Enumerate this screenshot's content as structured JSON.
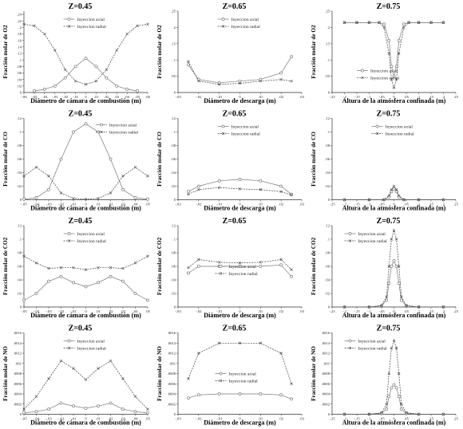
{
  "chart_data": [
    {
      "type": "line",
      "title": "Z=0.45",
      "xlabel": "Diámetro de cámara de combustión (m)",
      "ylabel": "Fracción molar de O2",
      "xlim": [
        -0.06,
        0.06
      ],
      "ylim": [
        0,
        0.25
      ],
      "xticks": [
        -0.06,
        -0.05,
        -0.04,
        -0.03,
        -0.02,
        -0.01,
        0,
        0.01,
        0.02,
        0.03,
        0.04,
        0.05,
        0.06
      ],
      "yticks": [
        0,
        0.02,
        0.04,
        0.06,
        0.08,
        0.1,
        0.12,
        0.14,
        0.16,
        0.18,
        0.2,
        0.22,
        0.24
      ],
      "legend": "top-center",
      "series": [
        {
          "name": "Inyeccion axial",
          "style": "circle",
          "x": [
            -0.05,
            -0.04,
            -0.03,
            -0.02,
            -0.01,
            0,
            0.01,
            0.02,
            0.03,
            0.04,
            0.05
          ],
          "y": [
            0.005,
            0.01,
            0.02,
            0.045,
            0.08,
            0.105,
            0.08,
            0.045,
            0.02,
            0.01,
            0.005
          ]
        },
        {
          "name": "Inyeccion radial",
          "style": "cross",
          "x": [
            -0.06,
            -0.05,
            -0.04,
            -0.03,
            -0.02,
            -0.01,
            0,
            0.01,
            0.02,
            0.03,
            0.04,
            0.05,
            0.06
          ],
          "y": [
            0.21,
            0.205,
            0.18,
            0.13,
            0.07,
            0.035,
            0.025,
            0.035,
            0.07,
            0.13,
            0.18,
            0.205,
            0.21
          ]
        }
      ]
    },
    {
      "type": "line",
      "title": "Z=0.65",
      "xlabel": "Diámetro de descarga (m)",
      "ylabel": "Fracción molar de O2",
      "xlim": [
        -0.03,
        0.03
      ],
      "ylim": [
        0,
        0.25
      ],
      "xticks": [
        -0.03,
        -0.02,
        -0.01,
        0,
        0.01,
        0.02,
        0.03
      ],
      "yticks": [
        0,
        0.05,
        0.1,
        0.15,
        0.2,
        0.25
      ],
      "legend": "top-center",
      "series": [
        {
          "name": "Inyeccion axial",
          "style": "circle",
          "x": [
            -0.025,
            -0.02,
            -0.01,
            0,
            0.01,
            0.02,
            0.025
          ],
          "y": [
            0.085,
            0.04,
            0.03,
            0.035,
            0.04,
            0.06,
            0.11
          ]
        },
        {
          "name": "Inyeccion radial",
          "style": "cross",
          "x": [
            -0.025,
            -0.02,
            -0.01,
            0,
            0.01,
            0.02,
            0.025
          ],
          "y": [
            0.095,
            0.035,
            0.025,
            0.028,
            0.035,
            0.04,
            0.035
          ]
        }
      ]
    },
    {
      "type": "line",
      "title": "Z=0.75",
      "xlabel": "Altura de la atmósfera confinada (m)",
      "ylabel": "Fracción molar de O2",
      "xlim": [
        -0.25,
        0.25
      ],
      "ylim": [
        0,
        0.25
      ],
      "xticks": [
        -0.25,
        -0.2,
        -0.15,
        -0.1,
        -0.05,
        0,
        0.05,
        0.1,
        0.15,
        0.2,
        0.25
      ],
      "yticks": [
        0,
        0.05,
        0.1,
        0.15,
        0.2,
        0.25
      ],
      "legend": "bottom-center",
      "series": [
        {
          "name": "Inyeccion axial",
          "style": "circle",
          "x": [
            -0.2,
            -0.15,
            -0.1,
            -0.06,
            -0.04,
            -0.02,
            -0.01,
            0,
            0.01,
            0.02,
            0.04,
            0.06,
            0.1,
            0.15,
            0.2
          ],
          "y": [
            0.215,
            0.215,
            0.215,
            0.215,
            0.21,
            0.16,
            0.08,
            0.05,
            0.08,
            0.16,
            0.21,
            0.215,
            0.215,
            0.215,
            0.215
          ]
        },
        {
          "name": "Inyeccion radial",
          "style": "cross",
          "x": [
            -0.2,
            -0.15,
            -0.1,
            -0.06,
            -0.04,
            -0.02,
            -0.01,
            0,
            0.01,
            0.02,
            0.04,
            0.06,
            0.1,
            0.15,
            0.2
          ],
          "y": [
            0.215,
            0.215,
            0.215,
            0.215,
            0.2,
            0.12,
            0.04,
            0.015,
            0.04,
            0.12,
            0.2,
            0.215,
            0.215,
            0.215,
            0.215
          ]
        }
      ]
    },
    {
      "type": "line",
      "title": "Z=0.45",
      "xlabel": "Diámetro de cámara de combustión (m)",
      "ylabel": "Fracción molar de CO",
      "xlim": [
        -0.05,
        0.05
      ],
      "ylim": [
        0,
        0.12
      ],
      "xticks": [
        -0.05,
        -0.04,
        -0.03,
        -0.02,
        -0.01,
        0,
        0.01,
        0.02,
        0.03,
        0.04,
        0.05
      ],
      "yticks": [
        0,
        0.02,
        0.04,
        0.06,
        0.08,
        0.1,
        0.12
      ],
      "legend": "top-right",
      "series": [
        {
          "name": "Inyeccion axial",
          "style": "circle",
          "x": [
            -0.05,
            -0.04,
            -0.03,
            -0.02,
            -0.01,
            0,
            0.01,
            0.02,
            0.03,
            0.04,
            0.05
          ],
          "y": [
            0.001,
            0.003,
            0.015,
            0.06,
            0.1,
            0.112,
            0.1,
            0.06,
            0.015,
            0.003,
            0.001
          ]
        },
        {
          "name": "Inyeccion radial",
          "style": "cross",
          "x": [
            -0.05,
            -0.04,
            -0.03,
            -0.02,
            -0.01,
            0,
            0.01,
            0.02,
            0.03,
            0.04,
            0.05
          ],
          "y": [
            0.035,
            0.048,
            0.035,
            0.01,
            0.002,
            0.001,
            0.002,
            0.01,
            0.035,
            0.048,
            0.035
          ]
        }
      ]
    },
    {
      "type": "line",
      "title": "Z=0.65",
      "xlabel": "Diámetro de descarga (m)",
      "ylabel": "Fracción molar de CO",
      "xlim": [
        -0.03,
        0.03
      ],
      "ylim": [
        0,
        0.12
      ],
      "xticks": [
        -0.03,
        -0.02,
        -0.01,
        0,
        0.01,
        0.02,
        0.03
      ],
      "yticks": [
        0,
        0.02,
        0.04,
        0.06,
        0.08,
        0.1,
        0.12
      ],
      "legend": "top-center",
      "series": [
        {
          "name": "Inyeccion axial",
          "style": "circle",
          "x": [
            -0.025,
            -0.02,
            -0.01,
            0,
            0.01,
            0.02,
            0.025
          ],
          "y": [
            0.012,
            0.02,
            0.028,
            0.03,
            0.028,
            0.02,
            0.008
          ]
        },
        {
          "name": "Inyeccion radial",
          "style": "cross",
          "x": [
            -0.025,
            -0.02,
            -0.01,
            0,
            0.01,
            0.02,
            0.025
          ],
          "y": [
            0.008,
            0.015,
            0.018,
            0.016,
            0.015,
            0.012,
            0.007
          ]
        }
      ]
    },
    {
      "type": "line",
      "title": "Z=0.75",
      "xlabel": "Altura de la atmósfera confinada (m)",
      "ylabel": "Fracción molar de CO",
      "xlim": [
        -0.25,
        0.25
      ],
      "ylim": [
        0,
        0.12
      ],
      "xticks": [
        -0.25,
        -0.2,
        -0.15,
        -0.1,
        -0.05,
        0,
        0.05,
        0.1,
        0.15,
        0.2,
        0.25
      ],
      "yticks": [
        0,
        0.02,
        0.04,
        0.06,
        0.08,
        0.1,
        0.12
      ],
      "legend": "top-center",
      "series": [
        {
          "name": "Inyeccion axial",
          "style": "circle",
          "x": [
            -0.2,
            -0.1,
            -0.04,
            -0.02,
            -0.01,
            0,
            0.01,
            0.02,
            0.04,
            0.1,
            0.2
          ],
          "y": [
            0,
            0,
            0,
            0.004,
            0.012,
            0.016,
            0.012,
            0.004,
            0,
            0,
            0
          ]
        },
        {
          "name": "Inyeccion radial",
          "style": "cross",
          "x": [
            -0.2,
            -0.1,
            -0.04,
            -0.02,
            -0.01,
            0,
            0.01,
            0.02,
            0.04,
            0.1,
            0.2
          ],
          "y": [
            0,
            0,
            0,
            0.006,
            0.015,
            0.02,
            0.015,
            0.006,
            0,
            0,
            0
          ]
        }
      ]
    },
    {
      "type": "line",
      "title": "Z=0.45",
      "xlabel": "Diámetro de cámara de combustión (m)",
      "ylabel": "Fracción molar de CO2",
      "xlim": [
        -0.05,
        0.05
      ],
      "ylim": [
        0,
        0.12
      ],
      "xticks": [
        -0.05,
        -0.04,
        -0.03,
        -0.02,
        -0.01,
        0,
        0.01,
        0.02,
        0.03,
        0.04,
        0.05
      ],
      "yticks": [
        0,
        0.02,
        0.04,
        0.06,
        0.08,
        0.1,
        0.12
      ],
      "legend": "top-center",
      "series": [
        {
          "name": "Inyeccion axial",
          "style": "circle",
          "x": [
            -0.05,
            -0.04,
            -0.03,
            -0.02,
            -0.01,
            0,
            0.01,
            0.02,
            0.03,
            0.04,
            0.05
          ],
          "y": [
            0.01,
            0.02,
            0.038,
            0.045,
            0.036,
            0.03,
            0.036,
            0.045,
            0.038,
            0.02,
            0.01
          ]
        },
        {
          "name": "Inyeccion radial",
          "style": "cross",
          "x": [
            -0.05,
            -0.04,
            -0.03,
            -0.02,
            -0.01,
            0,
            0.01,
            0.02,
            0.03,
            0.04,
            0.05
          ],
          "y": [
            0.075,
            0.065,
            0.057,
            0.058,
            0.058,
            0.055,
            0.058,
            0.058,
            0.057,
            0.065,
            0.075
          ]
        }
      ]
    },
    {
      "type": "line",
      "title": "Z=0.65",
      "xlabel": "Diámetro de descarga (m)",
      "ylabel": "Fracción molar de CO2",
      "xlim": [
        -0.03,
        0.03
      ],
      "ylim": [
        0,
        0.12
      ],
      "xticks": [
        -0.03,
        -0.02,
        -0.01,
        0,
        0.01,
        0.02,
        0.03
      ],
      "yticks": [
        0,
        0.02,
        0.04,
        0.06,
        0.08,
        0.1,
        0.12
      ],
      "legend": "center",
      "series": [
        {
          "name": "Inyeccion axial",
          "style": "circle",
          "x": [
            -0.025,
            -0.02,
            -0.01,
            0,
            0.01,
            0.02,
            0.025
          ],
          "y": [
            0.05,
            0.06,
            0.06,
            0.06,
            0.06,
            0.062,
            0.045
          ]
        },
        {
          "name": "Inyeccion radial",
          "style": "cross",
          "x": [
            -0.025,
            -0.02,
            -0.01,
            0,
            0.01,
            0.02,
            0.025
          ],
          "y": [
            0.058,
            0.07,
            0.066,
            0.065,
            0.066,
            0.07,
            0.055
          ]
        }
      ]
    },
    {
      "type": "line",
      "title": "Z=0.75",
      "xlabel": "Altura de la atmósfera confinada (m)",
      "ylabel": "Fracción molar de CO2",
      "xlim": [
        -0.25,
        0.25
      ],
      "ylim": [
        0,
        0.12
      ],
      "xticks": [
        -0.25,
        -0.2,
        -0.15,
        -0.1,
        -0.05,
        0,
        0.05,
        0.1,
        0.15,
        0.2,
        0.25
      ],
      "yticks": [
        0,
        0.02,
        0.04,
        0.06,
        0.08,
        0.1,
        0.12
      ],
      "legend": "top-left",
      "series": [
        {
          "name": "Inyeccion axial",
          "style": "circle",
          "x": [
            -0.2,
            -0.1,
            -0.05,
            -0.03,
            -0.02,
            -0.01,
            0,
            0.01,
            0.02,
            0.03,
            0.05,
            0.1,
            0.2
          ],
          "y": [
            0,
            0,
            0.002,
            0.01,
            0.035,
            0.06,
            0.068,
            0.06,
            0.035,
            0.01,
            0.002,
            0,
            0
          ]
        },
        {
          "name": "Inyeccion radial",
          "style": "cross",
          "x": [
            -0.2,
            -0.1,
            -0.05,
            -0.03,
            -0.02,
            -0.01,
            0,
            0.01,
            0.02,
            0.03,
            0.05,
            0.1,
            0.2
          ],
          "y": [
            0,
            0,
            0.002,
            0.015,
            0.06,
            0.1,
            0.113,
            0.1,
            0.06,
            0.015,
            0.002,
            0,
            0
          ]
        }
      ]
    },
    {
      "type": "line",
      "title": "Z=0.45",
      "xlabel": "Diámetro de cámara de combustión (m)",
      "ylabel": "Fracción molar de NO",
      "xlim": [
        -0.05,
        0.05
      ],
      "ylim": [
        0,
        0.0016
      ],
      "xticks": [
        -0.05,
        -0.04,
        -0.03,
        -0.02,
        -0.01,
        0,
        0.01,
        0.02,
        0.03,
        0.04,
        0.05
      ],
      "yticks": [
        0,
        0.0002,
        0.0004,
        0.0006,
        0.0008,
        0.001,
        0.0012,
        0.0014,
        0.0016
      ],
      "legend": "top-center",
      "series": [
        {
          "name": "Inyeccion axial",
          "style": "circle",
          "x": [
            -0.05,
            -0.04,
            -0.03,
            -0.02,
            -0.01,
            0,
            0.01,
            0.02,
            0.03,
            0.04,
            0.05
          ],
          "y": [
            3e-05,
            5e-05,
            0.0001,
            0.00022,
            0.00016,
            0.00012,
            0.00016,
            0.00022,
            0.0001,
            5e-05,
            3e-05
          ]
        },
        {
          "name": "Inyeccion radial",
          "style": "cross",
          "x": [
            -0.05,
            -0.04,
            -0.03,
            -0.02,
            -0.01,
            0,
            0.01,
            0.02,
            0.03,
            0.04,
            0.05
          ],
          "y": [
            0.0001,
            0.00035,
            0.0007,
            0.00105,
            0.0009,
            0.00068,
            0.0009,
            0.00105,
            0.0007,
            0.00035,
            0.0001
          ]
        }
      ]
    },
    {
      "type": "line",
      "title": "Z=0.65",
      "xlabel": "Diámetro de descarga (m)",
      "ylabel": "Fracción molar de NO",
      "xlim": [
        -0.03,
        0.03
      ],
      "ylim": [
        0,
        0.0016
      ],
      "xticks": [
        -0.03,
        -0.02,
        -0.01,
        0,
        0.01,
        0.02,
        0.03
      ],
      "yticks": [
        0,
        0.0002,
        0.0004,
        0.0006,
        0.0008,
        0.001,
        0.0012,
        0.0014,
        0.0016
      ],
      "legend": "center",
      "series": [
        {
          "name": "Inyeccion axial",
          "style": "circle",
          "x": [
            -0.025,
            -0.02,
            -0.01,
            0,
            0.01,
            0.02,
            0.025
          ],
          "y": [
            0.00032,
            0.00038,
            0.0004,
            0.0004,
            0.0004,
            0.00038,
            0.0003
          ]
        },
        {
          "name": "Inyeccion radial",
          "style": "cross",
          "x": [
            -0.025,
            -0.02,
            -0.01,
            0,
            0.01,
            0.02,
            0.025
          ],
          "y": [
            0.0007,
            0.0012,
            0.0014,
            0.0014,
            0.0014,
            0.0012,
            0.0006
          ]
        }
      ]
    },
    {
      "type": "line",
      "title": "Z=0.75",
      "xlabel": "Altura de la atmósfera confinada (m)",
      "ylabel": "Fracción molar de NO",
      "xlim": [
        -0.25,
        0.25
      ],
      "ylim": [
        0,
        0.0016
      ],
      "xticks": [
        -0.25,
        -0.2,
        -0.15,
        -0.1,
        -0.05,
        0,
        0.05,
        0.1,
        0.15,
        0.2,
        0.25
      ],
      "yticks": [
        0,
        0.0002,
        0.0004,
        0.0006,
        0.0008,
        0.001,
        0.0012,
        0.0014,
        0.0016
      ],
      "legend": "top-left",
      "series": [
        {
          "name": "Inyeccion axial",
          "style": "circle",
          "x": [
            -0.2,
            -0.1,
            -0.05,
            -0.03,
            -0.02,
            -0.01,
            0,
            0.01,
            0.02,
            0.03,
            0.05,
            0.1,
            0.2
          ],
          "y": [
            0,
            0,
            2e-05,
            0.0001,
            0.00035,
            0.00052,
            0.00058,
            0.00052,
            0.00035,
            0.0001,
            2e-05,
            0,
            0
          ]
        },
        {
          "name": "Inyeccion radial",
          "style": "cross",
          "x": [
            -0.2,
            -0.1,
            -0.05,
            -0.03,
            -0.02,
            -0.01,
            0,
            0.01,
            0.02,
            0.03,
            0.05,
            0.1,
            0.2
          ],
          "y": [
            0,
            0,
            3e-05,
            0.0002,
            0.0008,
            0.0013,
            0.00145,
            0.0013,
            0.0008,
            0.0002,
            3e-05,
            0,
            0
          ]
        }
      ]
    }
  ]
}
